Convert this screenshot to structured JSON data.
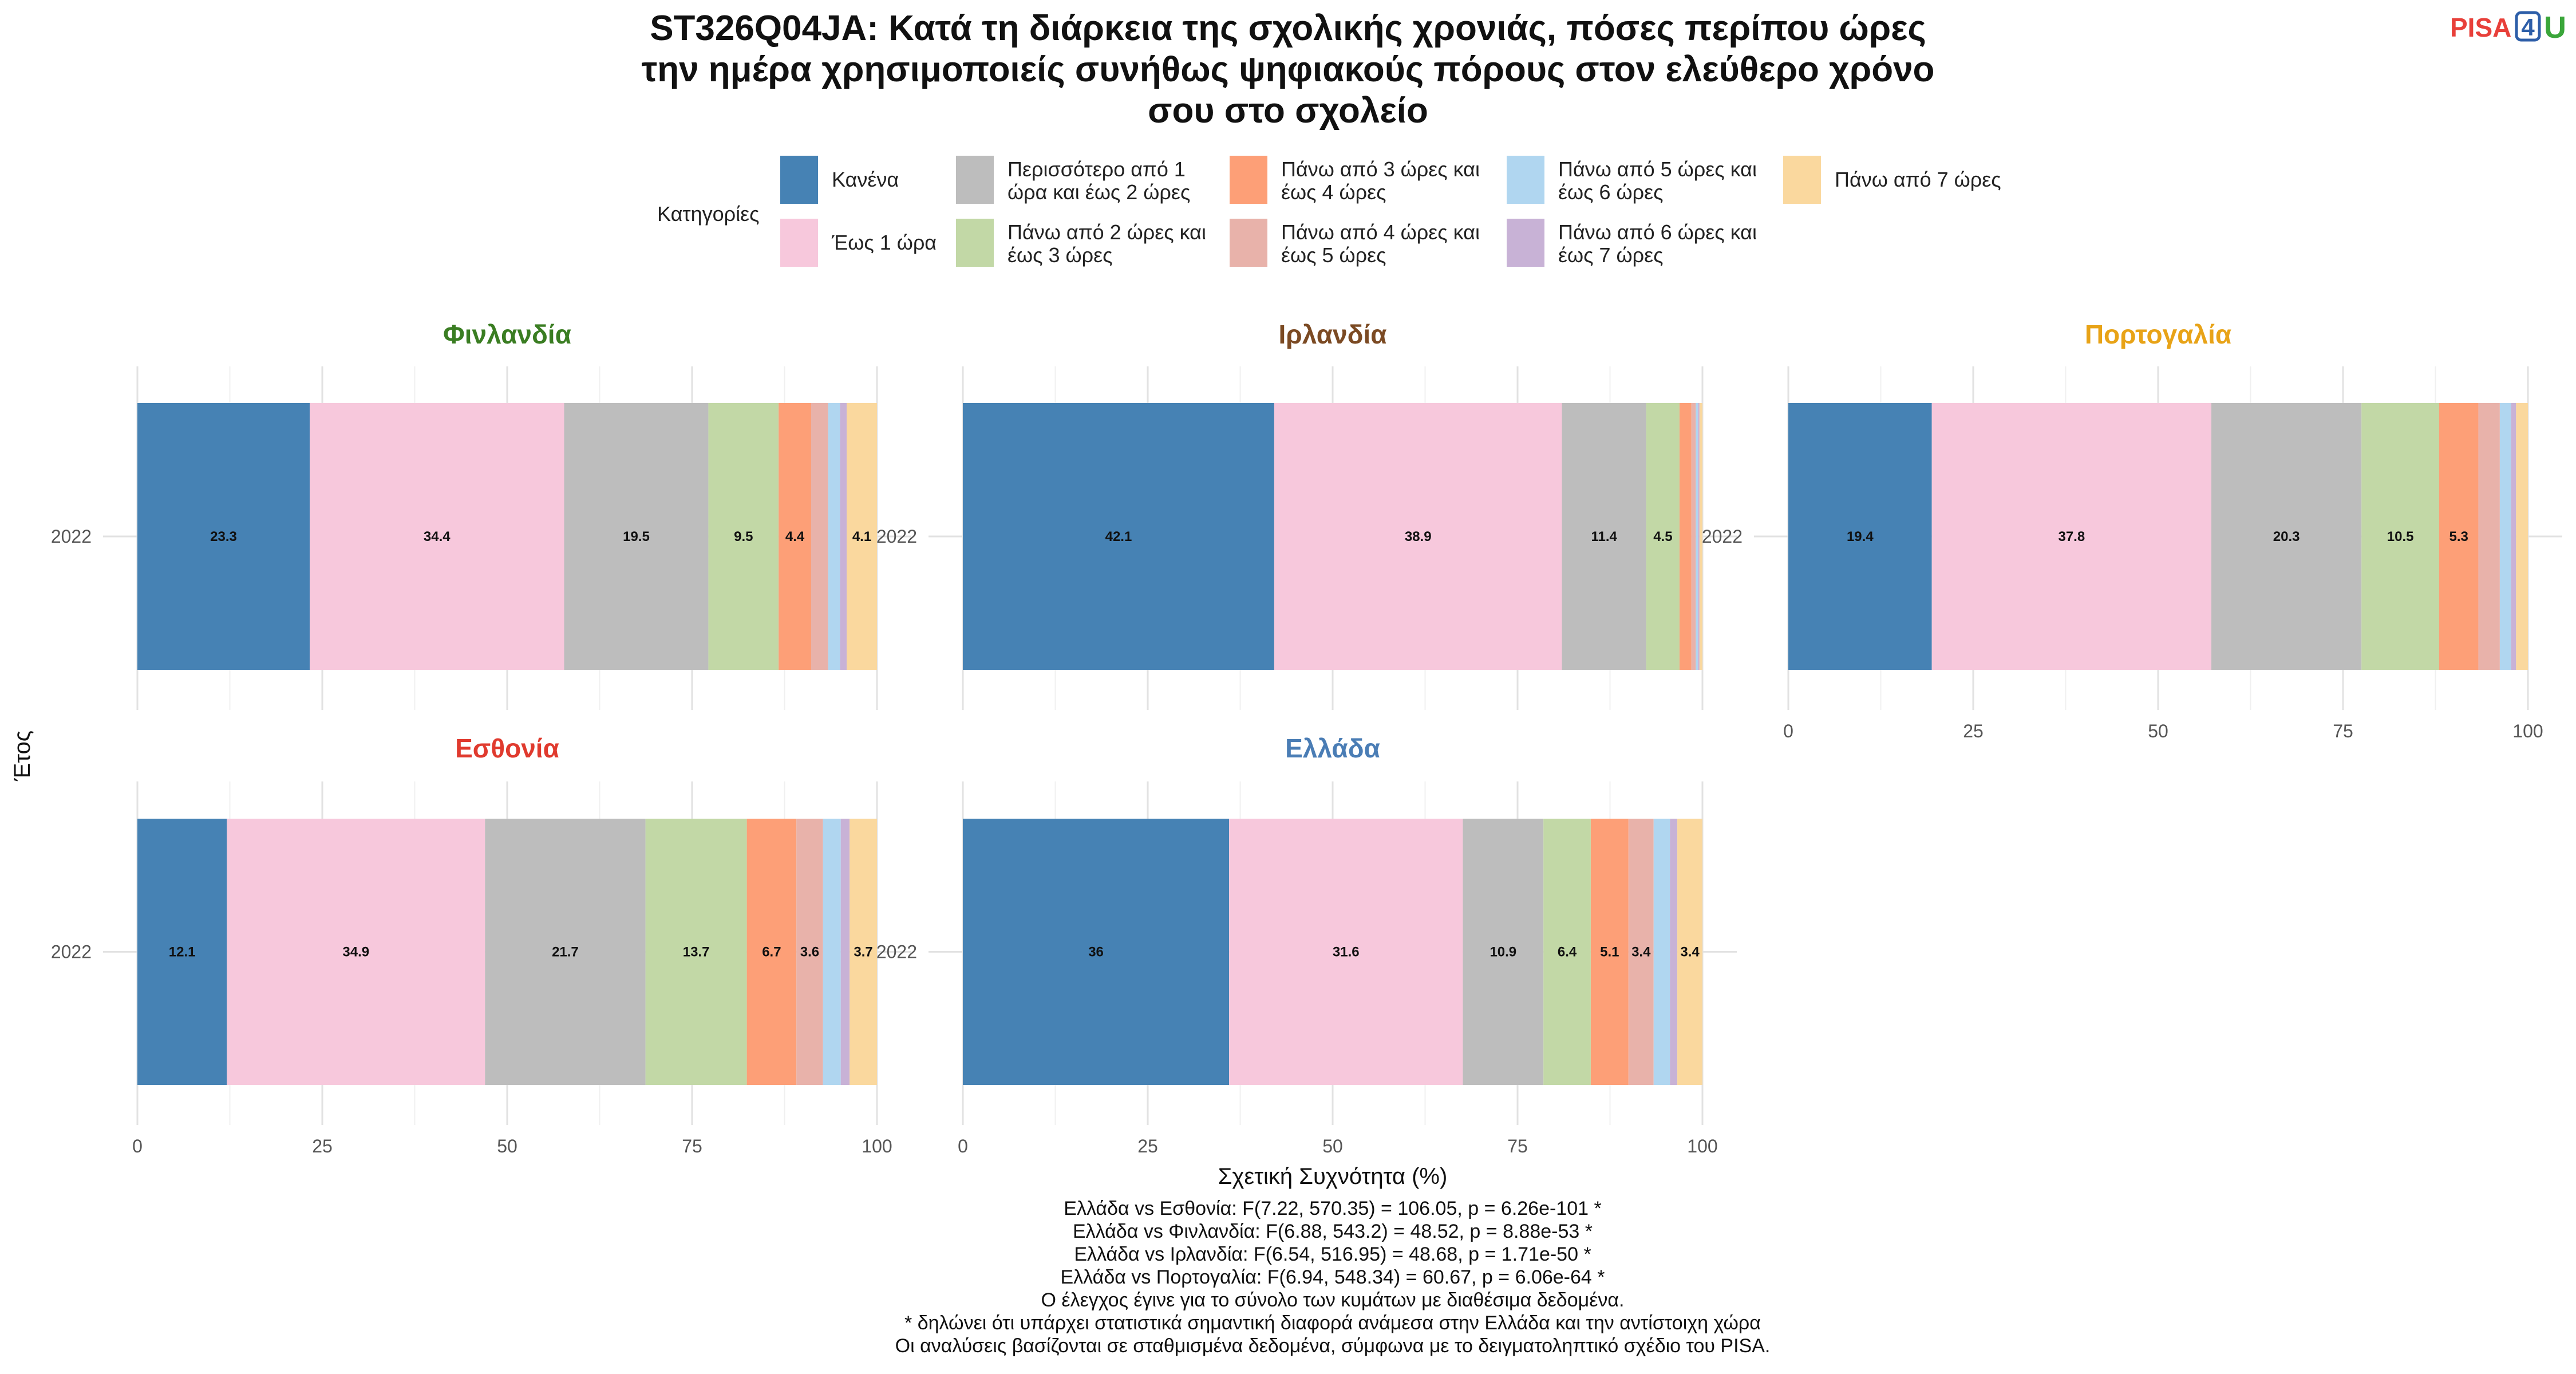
{
  "title_lines": [
    "ST326Q04JA: Κατά τη διάρκεια της σχολικής χρονιάς, πόσες περίπου ώρες",
    "την ημέρα χρησιμοποιείς συνήθως ψηφιακούς πόρους στον ελεύθερο χρόνο",
    "σου στο σχολείο"
  ],
  "logo": {
    "text_a": "PISA",
    "text_b": "4",
    "text_c": "U"
  },
  "legend": {
    "title": "Κατηγορίες",
    "items": [
      {
        "lines": [
          "Κανένα"
        ],
        "color": "#4682B4"
      },
      {
        "lines": [
          "Έως 1 ώρα"
        ],
        "color": "#F7C8DC"
      },
      {
        "lines": [
          "Περισσότερο από 1",
          "ώρα και έως 2 ώρες"
        ],
        "color": "#BDBDBD"
      },
      {
        "lines": [
          "Πάνω από 2 ώρες και",
          "έως 3 ώρες"
        ],
        "color": "#C2D8A6"
      },
      {
        "lines": [
          "Πάνω από 3 ώρες και",
          "έως 4 ώρες"
        ],
        "color": "#FD9F77"
      },
      {
        "lines": [
          "Πάνω από 4 ώρες και",
          "έως 5 ώρες"
        ],
        "color": "#E8B2AA"
      },
      {
        "lines": [
          "Πάνω από 5 ώρες και",
          "έως 6 ώρες"
        ],
        "color": "#B0D6F0"
      },
      {
        "lines": [
          "Πάνω από 6 ώρες και",
          "έως 7 ώρες"
        ],
        "color": "#C8B2D6"
      },
      {
        "lines": [
          "Πάνω από 7 ώρες"
        ],
        "color": "#FAD89E"
      }
    ]
  },
  "chart_data": {
    "type": "bar",
    "orientation": "horizontal-stacked",
    "xlabel": "Σχετική Συχνότητα (%)",
    "ylabel": "Έτος",
    "xlim": [
      0,
      100
    ],
    "xticks": [
      "0",
      "25",
      "50",
      "75",
      "100"
    ],
    "categories": [
      "2022"
    ],
    "panels": [
      {
        "name": "Φινλανδία",
        "color": "#3A7D22",
        "values": [
          23.3,
          34.4,
          19.5,
          9.5,
          4.4,
          2.3,
          1.6,
          0.9,
          4.1
        ],
        "labels": [
          "23.3",
          "34.4",
          "19.5",
          "9.5",
          "4.4",
          "",
          "",
          "",
          "4.1"
        ]
      },
      {
        "name": "Ιρλανδία",
        "color": "#7B4A23",
        "values": [
          42.1,
          38.9,
          11.4,
          4.5,
          1.6,
          0.6,
          0.3,
          0.2,
          0.4
        ],
        "labels": [
          "42.1",
          "38.9",
          "11.4",
          "4.5",
          "",
          "",
          "",
          "",
          ""
        ]
      },
      {
        "name": "Πορτογαλία",
        "color": "#E8A317",
        "values": [
          19.4,
          37.8,
          20.3,
          10.5,
          5.3,
          2.9,
          1.5,
          0.7,
          1.6
        ],
        "labels": [
          "19.4",
          "37.8",
          "20.3",
          "10.5",
          "5.3",
          "",
          "",
          "",
          ""
        ]
      },
      {
        "name": "Εσθονία",
        "color": "#E03A2E",
        "values": [
          12.1,
          34.9,
          21.7,
          13.7,
          6.7,
          3.6,
          2.4,
          1.2,
          3.7
        ],
        "labels": [
          "12.1",
          "34.9",
          "21.7",
          "13.7",
          "6.7",
          "3.6",
          "",
          "",
          "3.7"
        ]
      },
      {
        "name": "Ελλάδα",
        "color": "#4A7DB5",
        "values": [
          36,
          31.6,
          10.9,
          6.4,
          5.1,
          3.4,
          2.2,
          1.0,
          3.4
        ],
        "labels": [
          "36",
          "31.6",
          "10.9",
          "6.4",
          "5.1",
          "3.4",
          "",
          "",
          "3.4"
        ]
      }
    ]
  },
  "footnotes": [
    "Ελλάδα vs Εσθονία: F(7.22, 570.35) = 106.05, p = 6.26e-101 *",
    "Ελλάδα vs Φινλανδία: F(6.88, 543.2) = 48.52, p = 8.88e-53 *",
    "Ελλάδα vs Ιρλανδία: F(6.54, 516.95) = 48.68, p = 1.71e-50 *",
    "Ελλάδα vs Πορτογαλία: F(6.94, 548.34) = 60.67, p = 6.06e-64 *",
    "Ο έλεγχος έγινε για το σύνολο των κυμάτων με διαθέσιμα δεδομένα.",
    "* δηλώνει ότι υπάρχει στατιστικά σημαντική διαφορά ανάμεσα στην Ελλάδα και την αντίστοιχη χώρα",
    "Οι αναλύσεις βασίζονται σε σταθμισμένα δεδομένα, σύμφωνα με το δειγματοληπτικό σχέδιο του PISA."
  ]
}
